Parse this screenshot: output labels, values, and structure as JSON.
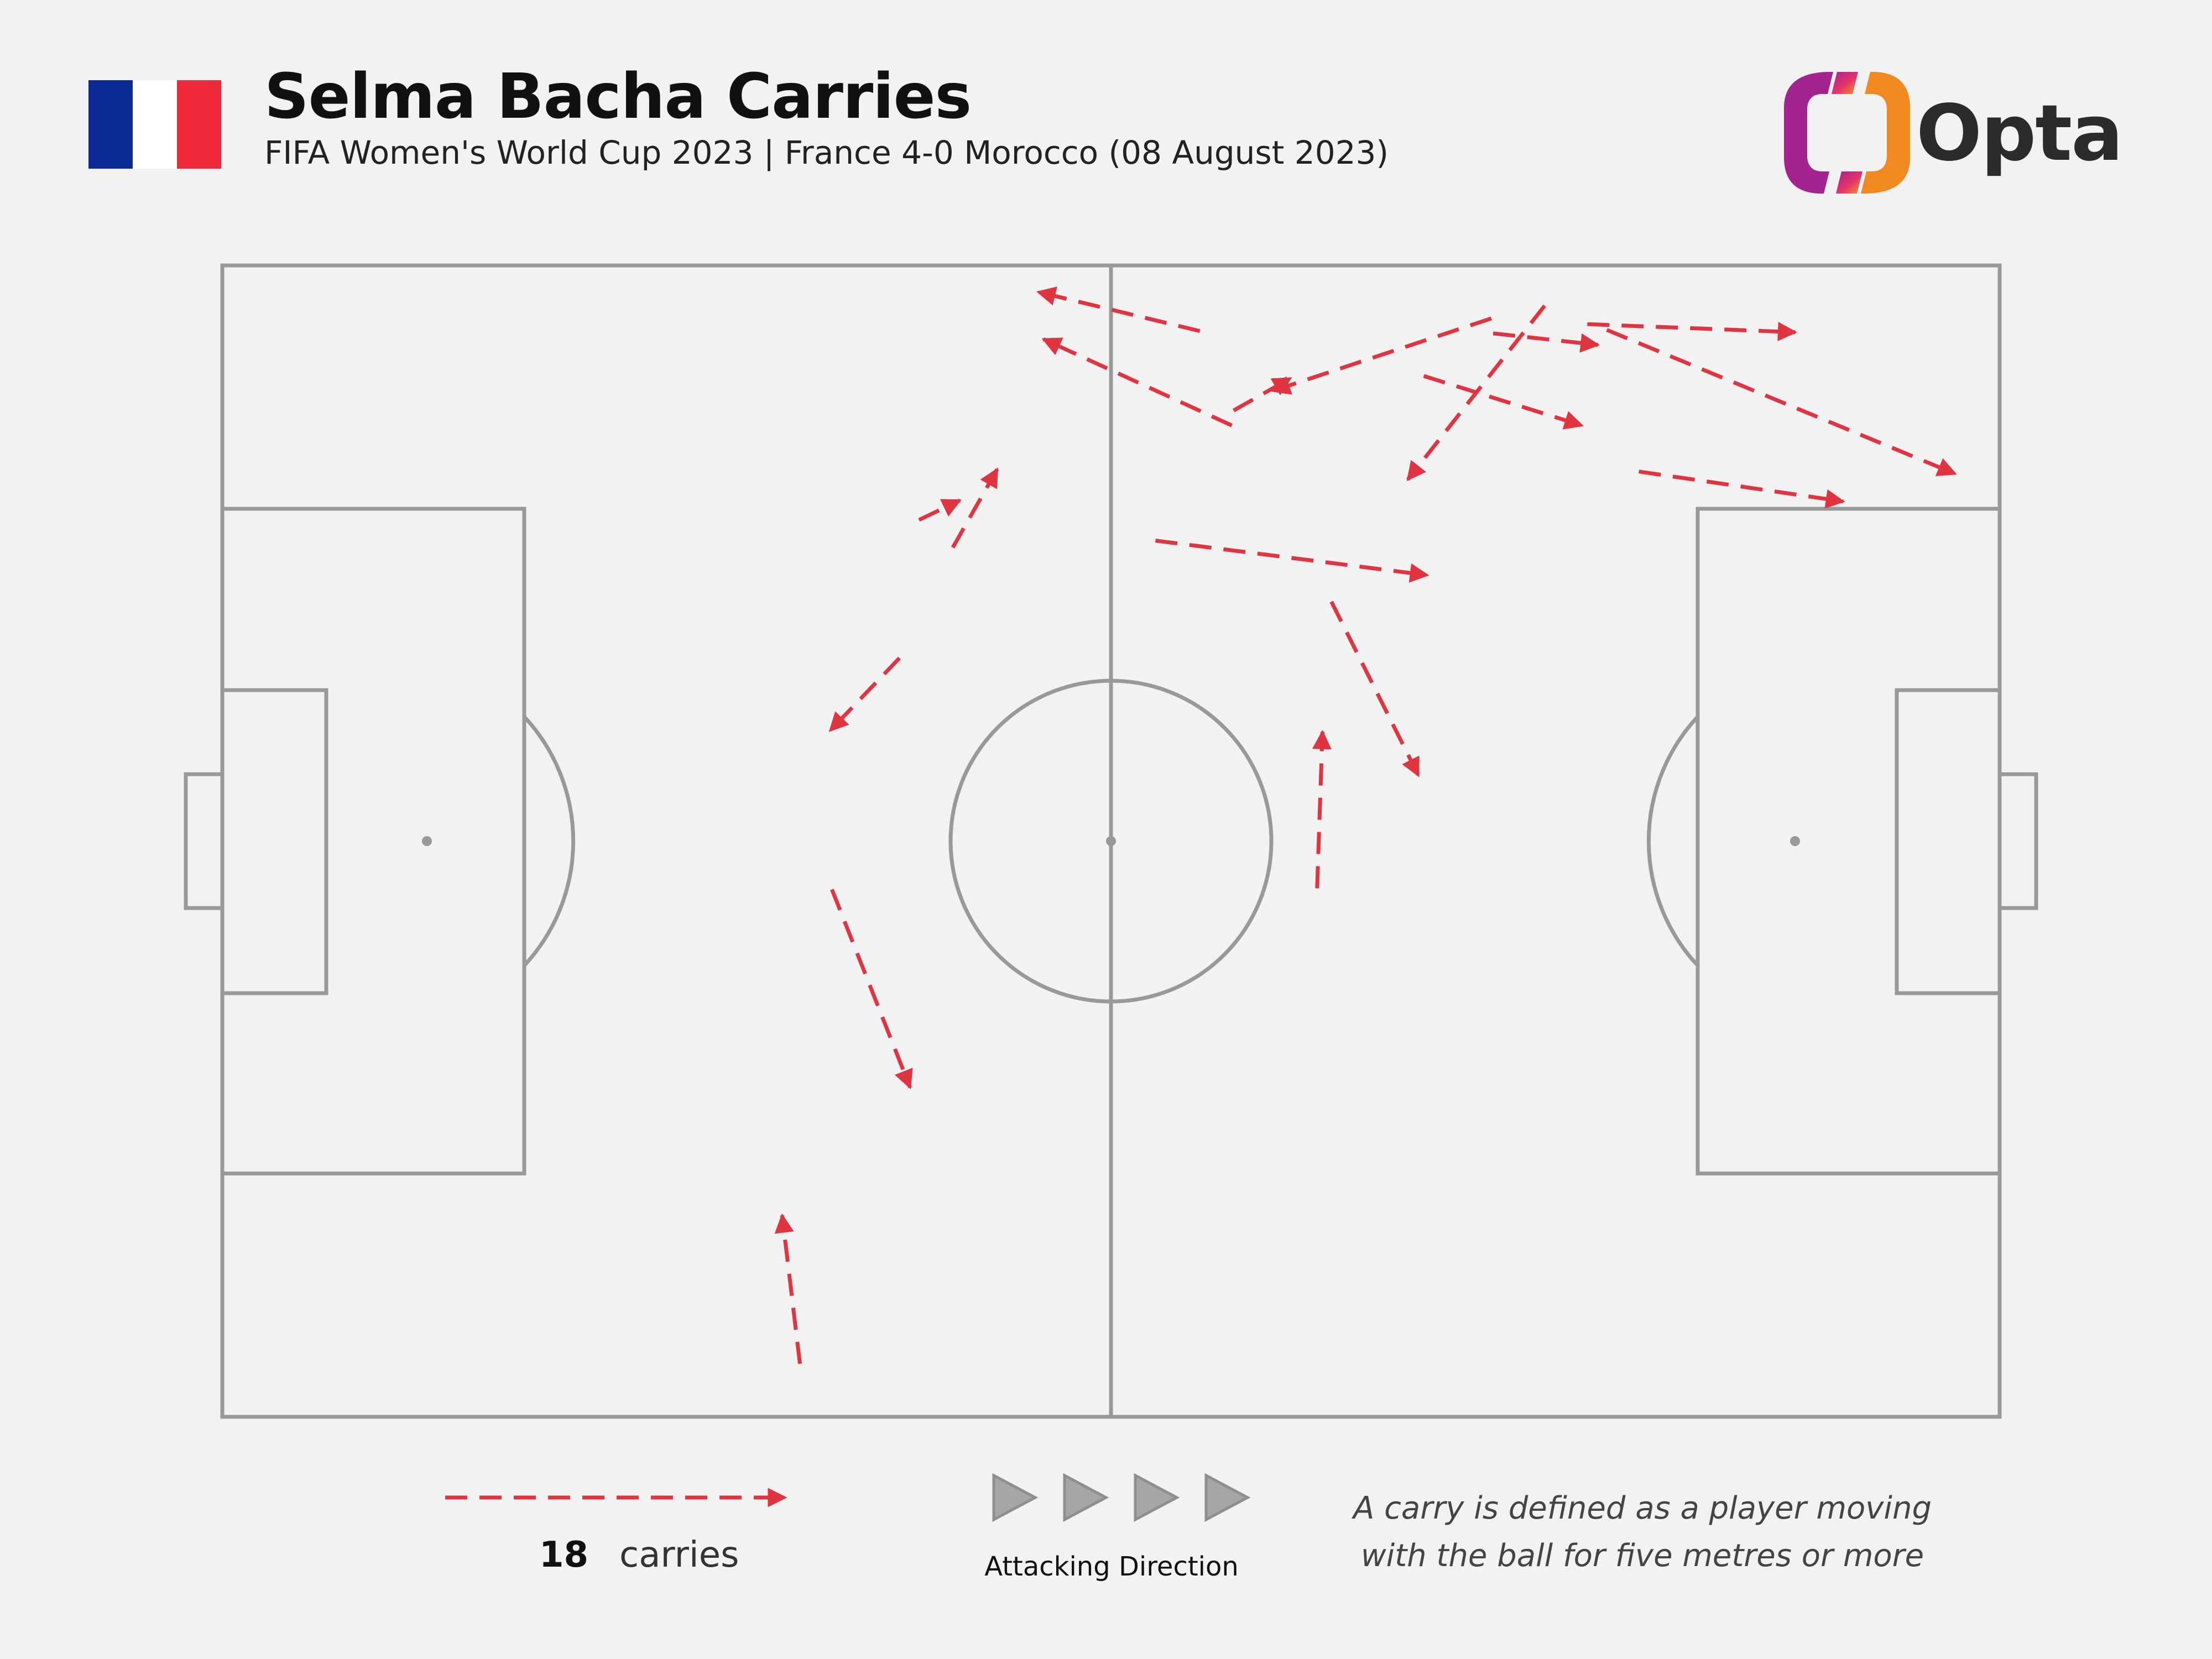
{
  "header": {
    "title": "Selma Bacha Carries",
    "subtitle": "FIFA Women's World Cup 2023 | France 4-0 Morocco (08 August 2023)",
    "brand": "Opta"
  },
  "colors": {
    "flag": [
      "#0b2a93",
      "#ffffff",
      "#ef2b3b"
    ],
    "carry": "#e03441",
    "pitch_line": "#999999",
    "background": "#f2f2f2"
  },
  "chart_data": {
    "type": "carry map",
    "pitch": {
      "length": 100,
      "width": 100,
      "attacking_direction": "left-to-right"
    },
    "carries": [
      {
        "start": [
          55,
          94.3
        ],
        "end": [
          45.9,
          97.7
        ]
      },
      {
        "start": [
          71.4,
          95.4
        ],
        "end": [
          59.1,
          89.1
        ]
      },
      {
        "start": [
          56.8,
          86.1
        ],
        "end": [
          46.2,
          93.6
        ]
      },
      {
        "start": [
          56.9,
          87.4
        ],
        "end": [
          60.1,
          90.2
        ]
      },
      {
        "start": [
          39.2,
          77.9
        ],
        "end": [
          41.5,
          79.6
        ]
      },
      {
        "start": [
          41.1,
          75.5
        ],
        "end": [
          43.6,
          82.3
        ]
      },
      {
        "start": [
          67.6,
          90.4
        ],
        "end": [
          76.5,
          86.1
        ]
      },
      {
        "start": [
          71.5,
          94.1
        ],
        "end": [
          77.4,
          93.1
        ]
      },
      {
        "start": [
          74.4,
          96.5
        ],
        "end": [
          66.7,
          81.4
        ]
      },
      {
        "start": [
          76.8,
          94.9
        ],
        "end": [
          88.5,
          94.2
        ]
      },
      {
        "start": [
          77.9,
          94.4
        ],
        "end": [
          97.5,
          81.9
        ]
      },
      {
        "start": [
          79.7,
          82.1
        ],
        "end": [
          91.2,
          79.5
        ]
      },
      {
        "start": [
          52.5,
          76.1
        ],
        "end": [
          67.8,
          73.1
        ]
      },
      {
        "start": [
          62.4,
          70.8
        ],
        "end": [
          67.3,
          55.7
        ]
      },
      {
        "start": [
          38.1,
          65.9
        ],
        "end": [
          34.2,
          59.6
        ]
      },
      {
        "start": [
          61.6,
          45.9
        ],
        "end": [
          61.9,
          59.5
        ]
      },
      {
        "start": [
          34.3,
          45.8
        ],
        "end": [
          38.7,
          28.6
        ]
      },
      {
        "start": [
          32.5,
          4.6
        ],
        "end": [
          31.5,
          17.5
        ]
      }
    ]
  },
  "legend": {
    "count": "18",
    "label": "carries",
    "attacking_direction": "Attacking Direction",
    "note_line1": "A carry is defined as a player moving",
    "note_line2": "with the ball for five metres or more"
  }
}
